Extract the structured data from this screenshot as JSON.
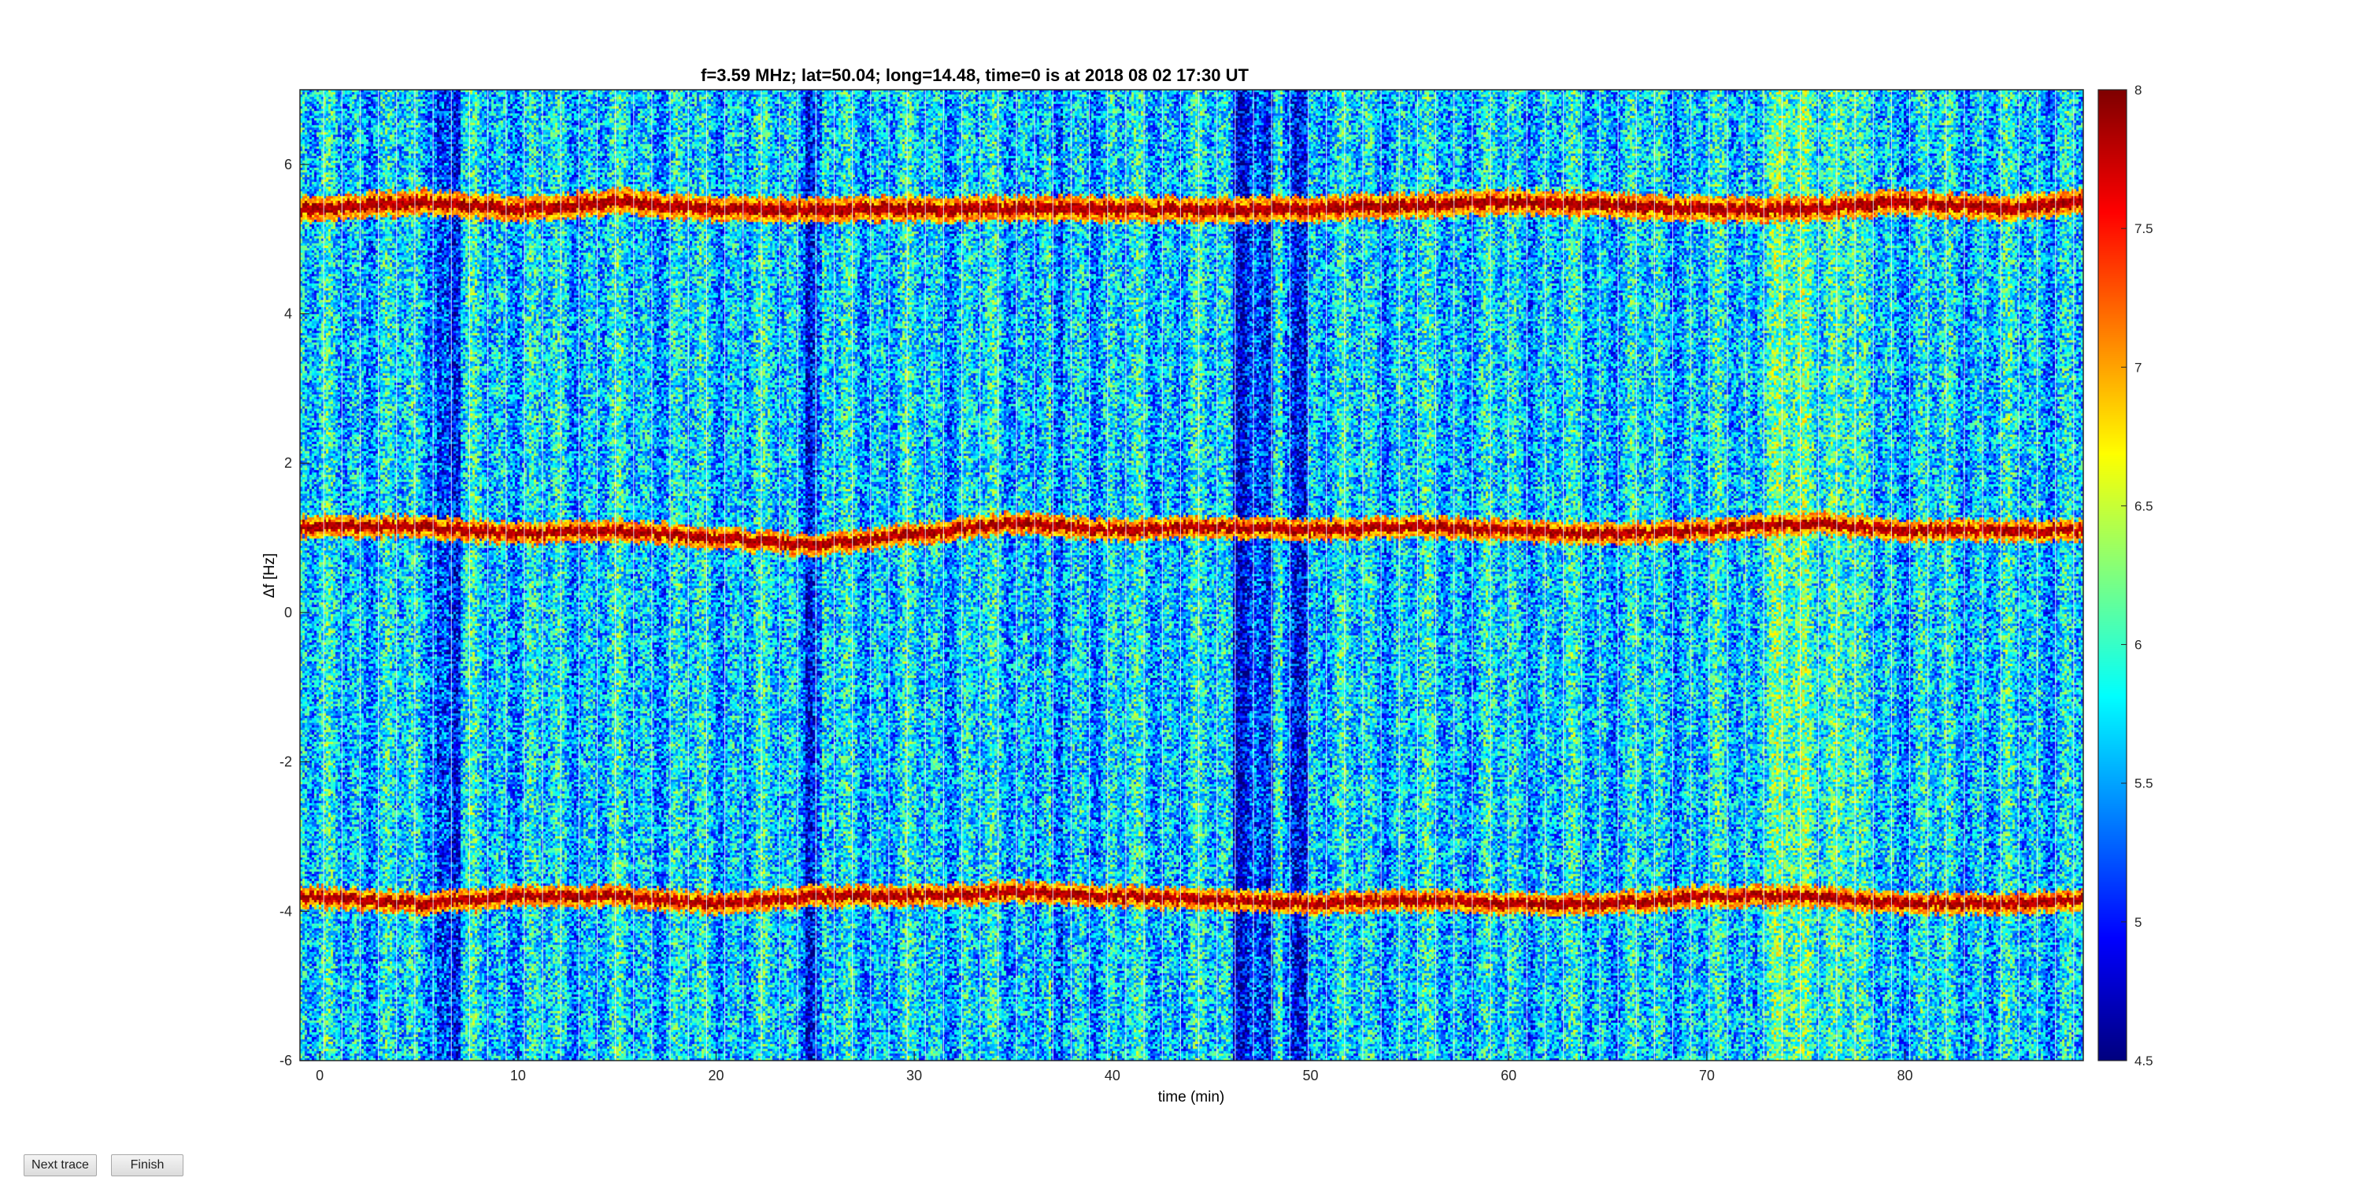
{
  "figure": {
    "buttons": {
      "next_trace": "Next trace",
      "finish": "Finish"
    }
  },
  "chart_data": {
    "type": "heatmap",
    "title": "f=3.59 MHz;  lat=50.04; long=14.48, time=0 is at 2018 08 02 17:30 UT",
    "xlabel": "time (min)",
    "ylabel": "Δf [Hz]",
    "xlim": [
      -1,
      89
    ],
    "ylim": [
      -6,
      7
    ],
    "xticks": [
      0,
      10,
      20,
      30,
      40,
      50,
      60,
      70,
      80
    ],
    "yticks": [
      -6,
      -4,
      -2,
      0,
      2,
      4,
      6
    ],
    "colorbar": {
      "colormap": "jet",
      "clim": [
        4.5,
        8
      ],
      "ticks": [
        4.5,
        5,
        5.5,
        6,
        6.5,
        7,
        7.5,
        8
      ]
    },
    "traces": [
      {
        "name": "upper",
        "x": [
          -1,
          5,
          10,
          15,
          20,
          25,
          30,
          40,
          50,
          60,
          70,
          75,
          80,
          85,
          89
        ],
        "y": [
          5.4,
          5.5,
          5.4,
          5.5,
          5.4,
          5.4,
          5.4,
          5.4,
          5.4,
          5.5,
          5.4,
          5.4,
          5.5,
          5.4,
          5.5
        ]
      },
      {
        "name": "middle",
        "x": [
          -1,
          5,
          10,
          15,
          20,
          25,
          30,
          35,
          40,
          45,
          50,
          55,
          60,
          65,
          70,
          75,
          80,
          85,
          89
        ],
        "y": [
          1.15,
          1.15,
          1.05,
          1.1,
          1.0,
          0.9,
          1.05,
          1.2,
          1.1,
          1.15,
          1.1,
          1.15,
          1.1,
          1.05,
          1.1,
          1.2,
          1.1,
          1.1,
          1.1
        ]
      },
      {
        "name": "lower",
        "x": [
          -1,
          5,
          10,
          15,
          20,
          25,
          30,
          35,
          40,
          45,
          50,
          55,
          60,
          65,
          70,
          75,
          80,
          85,
          89
        ],
        "y": [
          -3.8,
          -3.9,
          -3.8,
          -3.8,
          -3.9,
          -3.8,
          -3.8,
          -3.75,
          -3.8,
          -3.85,
          -3.9,
          -3.85,
          -3.9,
          -3.9,
          -3.8,
          -3.8,
          -3.9,
          -3.9,
          -3.85
        ]
      }
    ],
    "dark_bands_min": [
      [
        5.8,
        7.0
      ],
      [
        46.0,
        48.0
      ],
      [
        48.5,
        49.8
      ],
      [
        24.5,
        25.3
      ],
      [
        36.8,
        37.5
      ]
    ],
    "bright_band_min": [
      72.5,
      77.5
    ],
    "grid": false,
    "legend": "none"
  }
}
